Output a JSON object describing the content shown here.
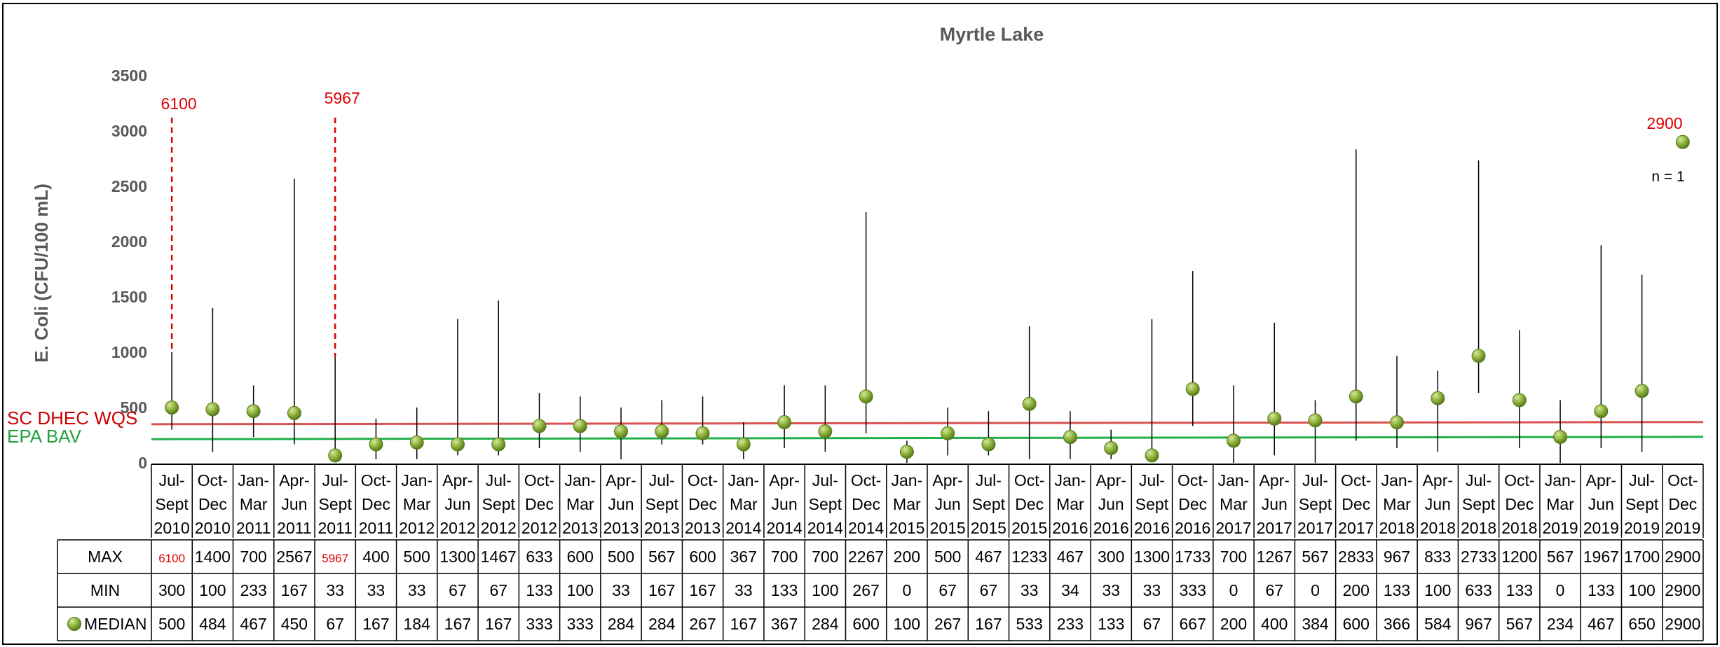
{
  "chart_data": {
    "type": "line",
    "title": "Myrtle Lake",
    "ylabel": "E. Coli (CFU/100 mL)",
    "xlabel": "",
    "ylim": [
      0,
      3500
    ],
    "yticks": [
      0,
      500,
      1000,
      1500,
      2000,
      2500,
      3000,
      3500
    ],
    "grid": false,
    "categories": [
      [
        "Jul-",
        "Sept",
        "2010"
      ],
      [
        "Oct-",
        "Dec",
        "2010"
      ],
      [
        "Jan-",
        "Mar",
        "2011"
      ],
      [
        "Apr-",
        "Jun",
        "2011"
      ],
      [
        "Jul-",
        "Sept",
        "2011"
      ],
      [
        "Oct-",
        "Dec",
        "2011"
      ],
      [
        "Jan-",
        "Mar",
        "2012"
      ],
      [
        "Apr-",
        "Jun",
        "2012"
      ],
      [
        "Jul-",
        "Sept",
        "2012"
      ],
      [
        "Oct-",
        "Dec",
        "2012"
      ],
      [
        "Jan-",
        "Mar",
        "2013"
      ],
      [
        "Apr-",
        "Jun",
        "2013"
      ],
      [
        "Jul-",
        "Sept",
        "2013"
      ],
      [
        "Oct-",
        "Dec",
        "2013"
      ],
      [
        "Jan-",
        "Mar",
        "2014"
      ],
      [
        "Apr-",
        "Jun",
        "2014"
      ],
      [
        "Jul-",
        "Sept",
        "2014"
      ],
      [
        "Oct-",
        "Dec",
        "2014"
      ],
      [
        "Jan-",
        "Mar",
        "2015"
      ],
      [
        "Apr-",
        "Jun",
        "2015"
      ],
      [
        "Jul-",
        "Sept",
        "2015"
      ],
      [
        "Oct-",
        "Dec",
        "2015"
      ],
      [
        "Jan-",
        "Mar",
        "2016"
      ],
      [
        "Apr-",
        "Jun",
        "2016"
      ],
      [
        "Jul-",
        "Sept",
        "2016"
      ],
      [
        "Oct-",
        "Dec",
        "2016"
      ],
      [
        "Jan-",
        "Mar",
        "2017"
      ],
      [
        "Apr-",
        "Jun",
        "2017"
      ],
      [
        "Jul-",
        "Sept",
        "2017"
      ],
      [
        "Oct-",
        "Dec",
        "2017"
      ],
      [
        "Jan-",
        "Mar",
        "2018"
      ],
      [
        "Apr-",
        "Jun",
        "2018"
      ],
      [
        "Jul-",
        "Sept",
        "2018"
      ],
      [
        "Oct-",
        "Dec",
        "2018"
      ],
      [
        "Jan-",
        "Mar",
        "2019"
      ],
      [
        "Apr-",
        "Jun",
        "2019"
      ],
      [
        "Jul-",
        "Sept",
        "2019"
      ],
      [
        "Oct-",
        "Dec",
        "2019"
      ]
    ],
    "max_label": "MAX",
    "min_label": "MIN",
    "median_label": "MEDIAN",
    "max": [
      6100,
      1400,
      700,
      2567,
      5967,
      400,
      500,
      1300,
      1467,
      633,
      600,
      500,
      567,
      600,
      367,
      700,
      700,
      2267,
      200,
      500,
      467,
      1233,
      467,
      300,
      1300,
      1733,
      700,
      1267,
      567,
      2833,
      967,
      833,
      2733,
      1200,
      567,
      1967,
      1700,
      2900
    ],
    "min": [
      300,
      100,
      233,
      167,
      33,
      33,
      33,
      67,
      67,
      133,
      100,
      33,
      167,
      167,
      33,
      133,
      100,
      267,
      0,
      67,
      67,
      33,
      34,
      33,
      33,
      333,
      0,
      67,
      0,
      200,
      133,
      100,
      633,
      133,
      0,
      133,
      100,
      2900
    ],
    "median": [
      500,
      484,
      467,
      450,
      67,
      167,
      184,
      167,
      167,
      333,
      333,
      284,
      284,
      267,
      167,
      367,
      284,
      600,
      100,
      267,
      167,
      533,
      233,
      133,
      67,
      667,
      200,
      400,
      384,
      600,
      366,
      584,
      967,
      567,
      234,
      467,
      650,
      2900
    ],
    "off_scale_annotations": [
      {
        "index": 0,
        "text": "6100"
      },
      {
        "index": 4,
        "text": "5967"
      }
    ],
    "single_sample_annotation": {
      "index": 37,
      "value_text": "2900",
      "note": "n = 1"
    },
    "reference_lines": [
      {
        "name": "SC DHEC WQS",
        "y_start": 349,
        "y_end": 369,
        "color": "#d9534f",
        "label_color": "#cc0000"
      },
      {
        "name": "EPA BAV",
        "y_start": 214,
        "y_end": 235,
        "color": "#22b04a",
        "label_color": "#22a040"
      }
    ],
    "colors": {
      "whisker": "#000000",
      "marker_fill": "#8db33a",
      "marker_highlight": "#d6e8a0",
      "marker_stroke": "#5a7a1e",
      "offscale": "#e00000",
      "axis_text": "#595959",
      "table_border": "#000000"
    }
  }
}
